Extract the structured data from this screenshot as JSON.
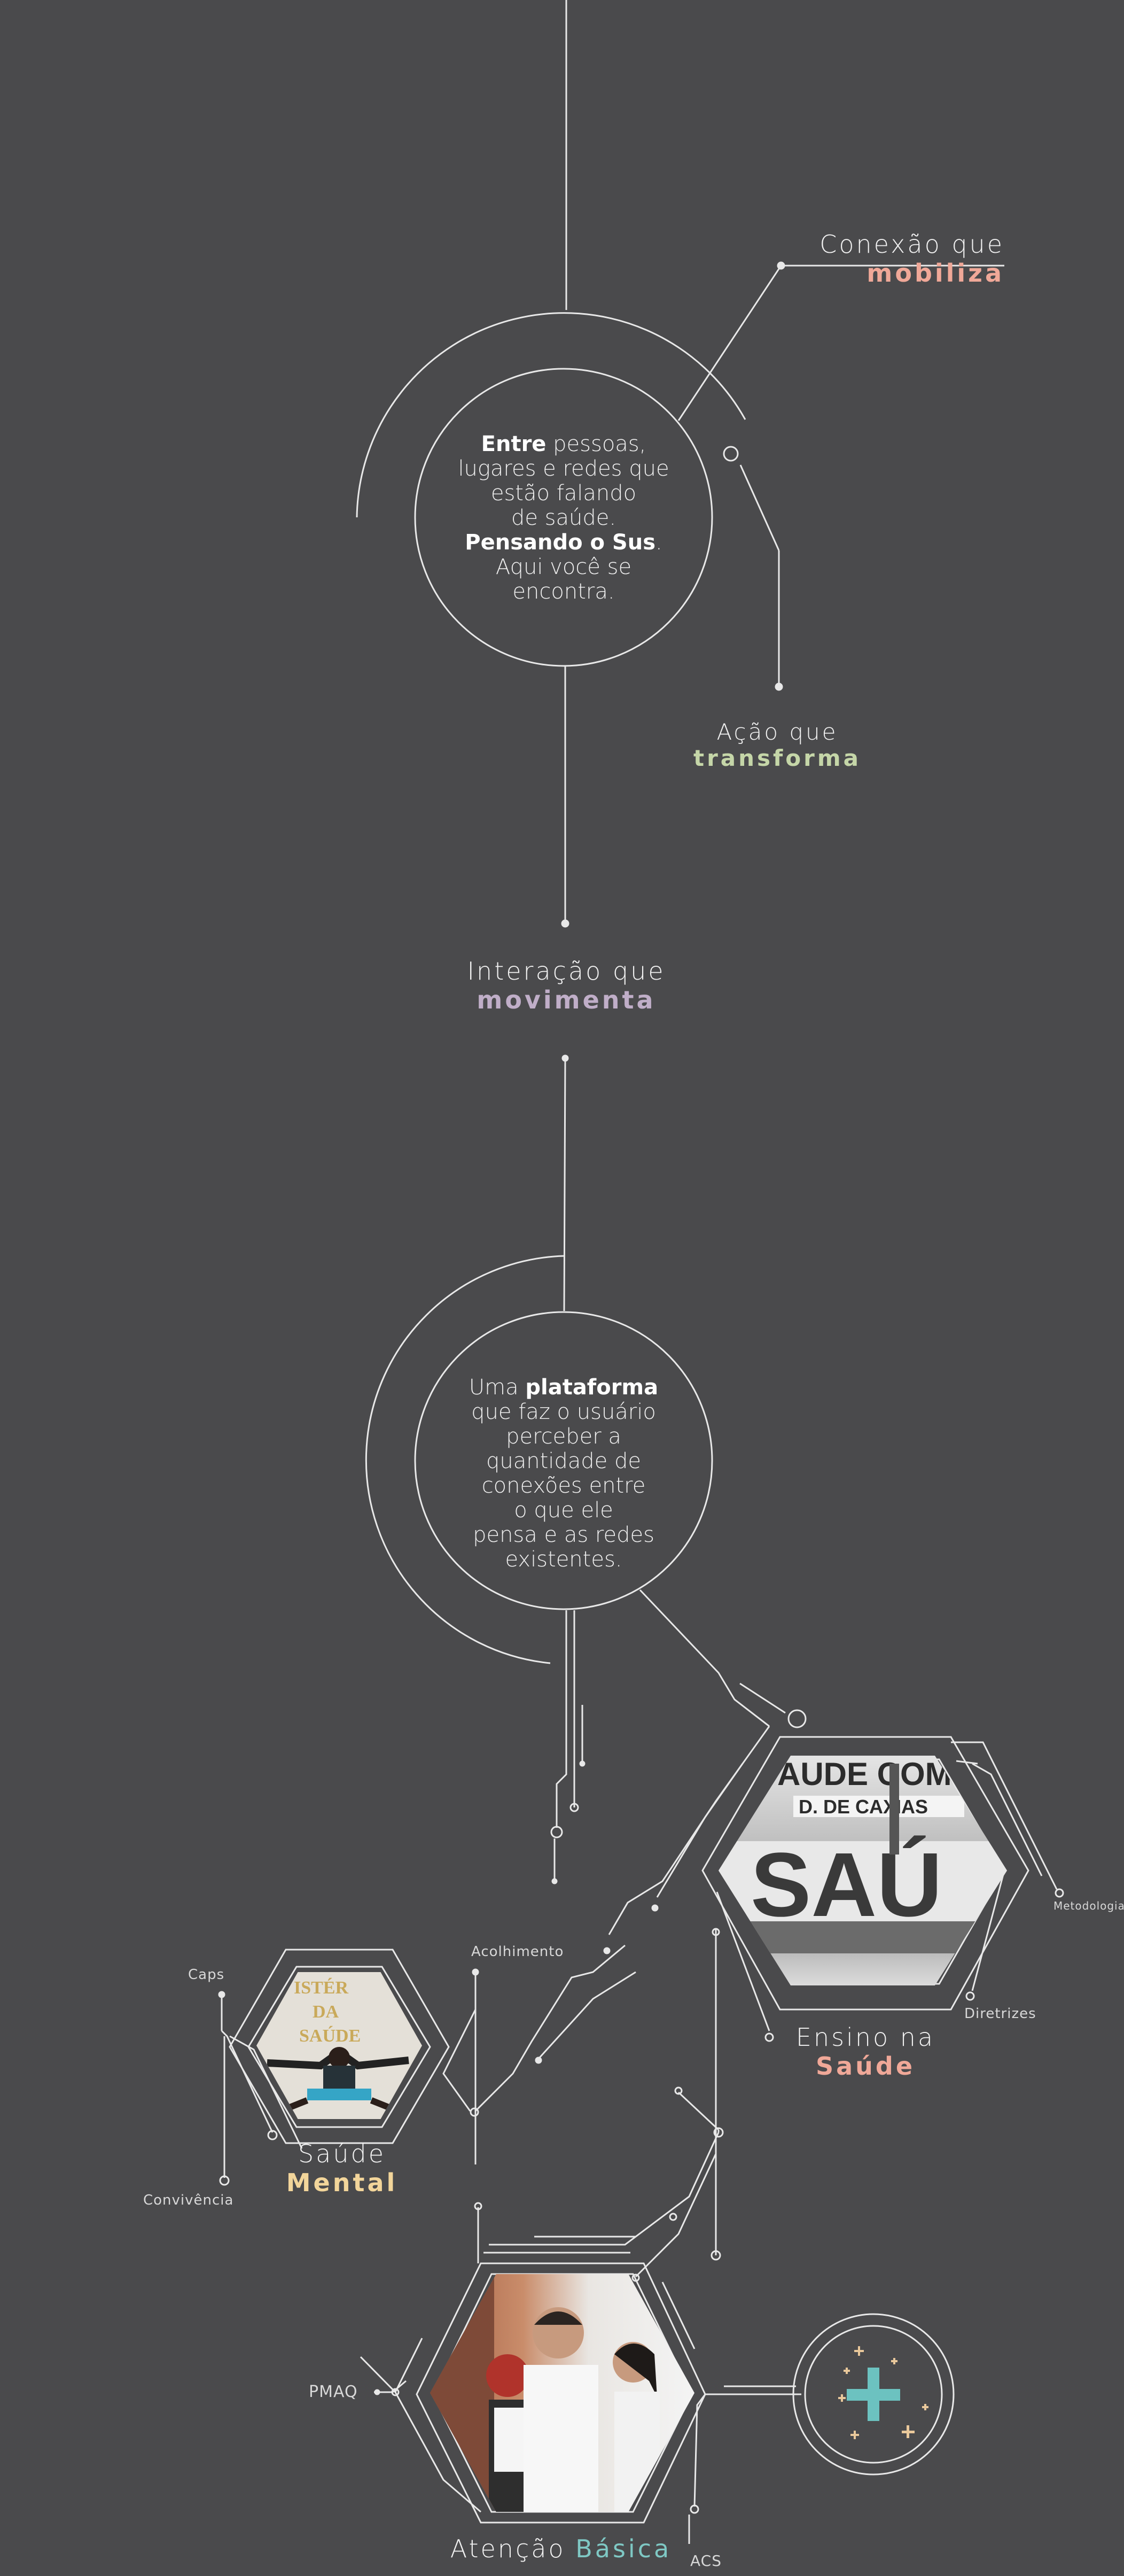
{
  "hero": {
    "conexao": {
      "line1": "Conexão que",
      "line2": "mobiliza"
    },
    "acao": {
      "line1": "Ação que",
      "line2": "transforma"
    },
    "interacao": {
      "line1": "Interação que",
      "line2": "movimenta"
    },
    "circle1": {
      "w1": "Entre",
      "t1": " pessoas,",
      "t2": "lugares e redes que",
      "t3": "estão falando",
      "t4": "de saúde.",
      "w2": "Pensando o Sus",
      "t5": ".",
      "t6": "Aqui você se",
      "t7": "encontra."
    },
    "circle2": {
      "t1": "Uma ",
      "w1": "plataforma",
      "t2": "que faz o usuário",
      "t3": "perceber a",
      "t4": "quantidade de",
      "t5": "conexões entre",
      "t6": "o que ele",
      "t7": "pensa e as redes",
      "t8": "existentes."
    }
  },
  "network": {
    "ensino": {
      "line1": "Ensino na",
      "line2": "Saúde",
      "photo_text": "SAÚDE COM / D. DE CAXIAS / CUT / SAÚ"
    },
    "mental": {
      "line1": "Saúde",
      "line2": "Mental",
      "photo_text": "MINISTÉRIO DA SAÚDE"
    },
    "basica": {
      "line1": "Atenção",
      "line2": "Básica"
    },
    "tags": {
      "metodologias": "Metodologias",
      "diretrizes": "Diretrizes",
      "acolhimento": "Acolhimento",
      "caps": "Caps",
      "convivencia": "Convivência",
      "pmaq": "PMAQ",
      "acs": "ACS"
    },
    "plus_icon": "plus-icon"
  },
  "colors": {
    "background": "#4a4a4c",
    "mobiliza": "#f0a898",
    "transforma": "#c5d6a8",
    "movimenta": "#c0aec8",
    "saude": "#f0a898",
    "mental": "#f2d59a",
    "basica": "#7fc8c4",
    "plus": "#6cc2c0"
  }
}
